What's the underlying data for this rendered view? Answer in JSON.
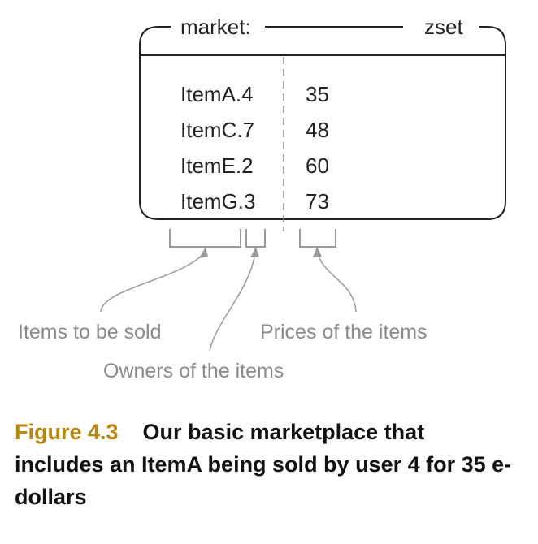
{
  "zset": {
    "key_label": "market:",
    "type_label": "zset",
    "members": [
      {
        "member": "ItemA.4",
        "score": "35"
      },
      {
        "member": "ItemC.7",
        "score": "48"
      },
      {
        "member": "ItemE.2",
        "score": "60"
      },
      {
        "member": "ItemG.3",
        "score": "73"
      }
    ]
  },
  "annotations": {
    "items": "Items to be sold",
    "owners": "Owners of the items",
    "prices": "Prices of the items"
  },
  "caption": {
    "number": "Figure 4.3",
    "text": "Our basic marketplace that includes an ItemA being sold by user 4 for 35 e-dollars"
  },
  "colors": {
    "caption_number": "#b8860b",
    "annotation": "#8a8a8a",
    "box_border": "#222222"
  }
}
